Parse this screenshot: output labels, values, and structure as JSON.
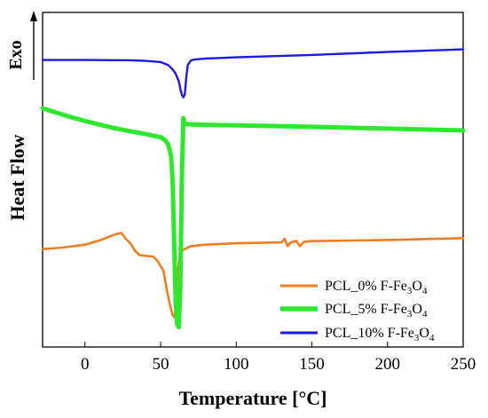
{
  "chart_data": {
    "type": "line",
    "title": "",
    "xlabel": "Temperature [°C]",
    "ylabel": "Heat Flow",
    "exo_label": "Exo",
    "xlim": [
      -28,
      250
    ],
    "x_ticks": [
      0,
      50,
      100,
      150,
      200,
      250
    ],
    "ylim": [
      0,
      1
    ],
    "y_tick_labels": false,
    "grid": false,
    "legend_position": "bottom-right",
    "series": [
      {
        "name": "PCL_0% F-Fe3O4",
        "legend_label": {
          "pre": "PCL_0% F-Fe",
          "sub1": "3",
          "mid": "O",
          "sub2": "4"
        },
        "color": "#f07d1e",
        "stroke_width": 2.6,
        "x": [
          -28,
          -15,
          0,
          10,
          20,
          24,
          27,
          30,
          33,
          36,
          40,
          45,
          48,
          52,
          54,
          56,
          58,
          59,
          60,
          61,
          62,
          64,
          66,
          70,
          80,
          100,
          130,
          132,
          134,
          136,
          140,
          142,
          145,
          150,
          200,
          250
        ],
        "y": [
          0.275,
          0.28,
          0.29,
          0.305,
          0.325,
          0.33,
          0.31,
          0.295,
          0.27,
          0.255,
          0.252,
          0.25,
          0.235,
          0.2,
          0.14,
          0.09,
          0.05,
          0.045,
          0.07,
          0.16,
          0.23,
          0.27,
          0.275,
          0.285,
          0.29,
          0.295,
          0.298,
          0.31,
          0.285,
          0.298,
          0.302,
          0.285,
          0.3,
          0.302,
          0.306,
          0.312
        ]
      },
      {
        "name": "PCL_5% F-Fe3O4",
        "legend_label": {
          "pre": "PCL_5% F-Fe",
          "sub1": "3",
          "mid": "O",
          "sub2": "4"
        },
        "color": "#2ee82e",
        "stroke_width": 5,
        "x": [
          -28,
          -20,
          -10,
          0,
          10,
          20,
          30,
          40,
          45,
          50,
          53,
          55,
          57,
          58,
          59,
          60,
          61,
          62,
          63,
          64,
          65,
          66,
          70,
          80,
          100,
          150,
          200,
          250
        ],
        "y": [
          0.753,
          0.74,
          0.724,
          0.71,
          0.697,
          0.685,
          0.675,
          0.666,
          0.66,
          0.655,
          0.645,
          0.63,
          0.59,
          0.5,
          0.3,
          0.1,
          0.02,
          0.01,
          0.15,
          0.5,
          0.72,
          0.7,
          0.698,
          0.697,
          0.695,
          0.69,
          0.684,
          0.678
        ]
      },
      {
        "name": "PCL_10% F-Fe3O4",
        "legend_label": {
          "pre": "PCL_10% F-Fe",
          "sub1": "3",
          "mid": "O",
          "sub2": "4"
        },
        "color": "#1a1ae0",
        "stroke_width": 2.4,
        "x": [
          -28,
          0,
          30,
          40,
          50,
          55,
          58,
          60,
          62,
          63,
          64,
          65,
          66,
          67,
          68,
          70,
          72,
          80,
          100,
          150,
          200,
          250
        ],
        "y": [
          0.917,
          0.917,
          0.916,
          0.914,
          0.91,
          0.9,
          0.885,
          0.87,
          0.845,
          0.82,
          0.8,
          0.79,
          0.8,
          0.86,
          0.9,
          0.915,
          0.918,
          0.922,
          0.926,
          0.934,
          0.944,
          0.953
        ]
      }
    ]
  }
}
